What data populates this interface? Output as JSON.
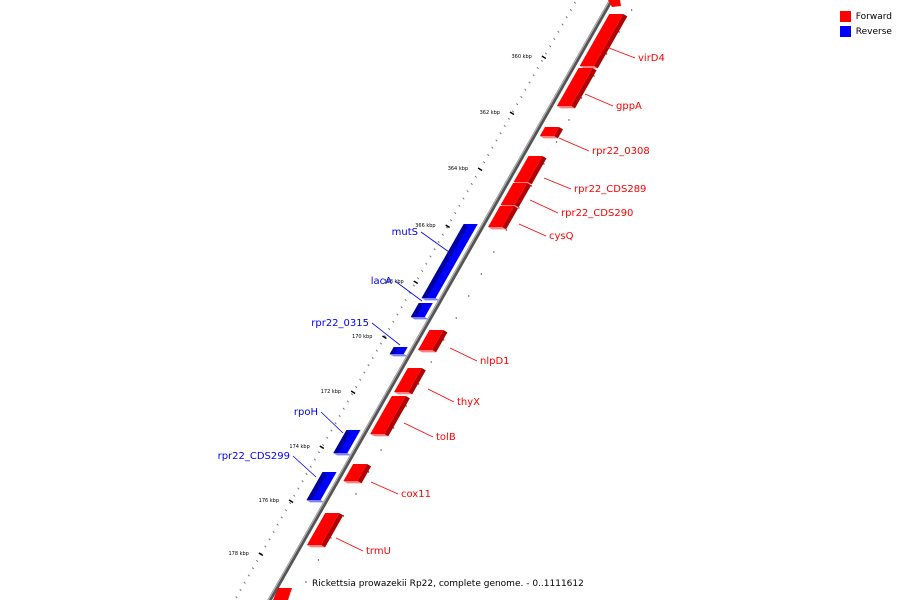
{
  "legend": {
    "forward_label": "Forward",
    "reverse_label": "Reverse",
    "forward_color": "#ff0000",
    "reverse_color": "#0000ff"
  },
  "caption": "Rickettsia prowazekii Rp22, complete genome. - 0..1111612",
  "ticks": [
    "360 kbp",
    "362 kbp",
    "364 kbp",
    "366 kbp",
    "368 kbp",
    "170 kbp",
    "172 kbp",
    "174 kbp",
    "176 kbp",
    "178 kbp"
  ],
  "genes": [
    {
      "name": "virD4",
      "strand": "forward"
    },
    {
      "name": "gppA",
      "strand": "forward"
    },
    {
      "name": "rpr22_0308",
      "strand": "forward"
    },
    {
      "name": "rpr22_CDS289",
      "strand": "forward"
    },
    {
      "name": "rpr22_CDS290",
      "strand": "forward"
    },
    {
      "name": "cysQ",
      "strand": "forward"
    },
    {
      "name": "mutS",
      "strand": "reverse"
    },
    {
      "name": "lacA",
      "strand": "reverse"
    },
    {
      "name": "rpr22_0315",
      "strand": "reverse"
    },
    {
      "name": "nlpD1",
      "strand": "forward"
    },
    {
      "name": "thyX",
      "strand": "forward"
    },
    {
      "name": "tolB",
      "strand": "forward"
    },
    {
      "name": "rpoH",
      "strand": "reverse"
    },
    {
      "name": "rpr22_CDS299",
      "strand": "reverse"
    },
    {
      "name": "cox11",
      "strand": "forward"
    },
    {
      "name": "trmU",
      "strand": "forward"
    }
  ]
}
